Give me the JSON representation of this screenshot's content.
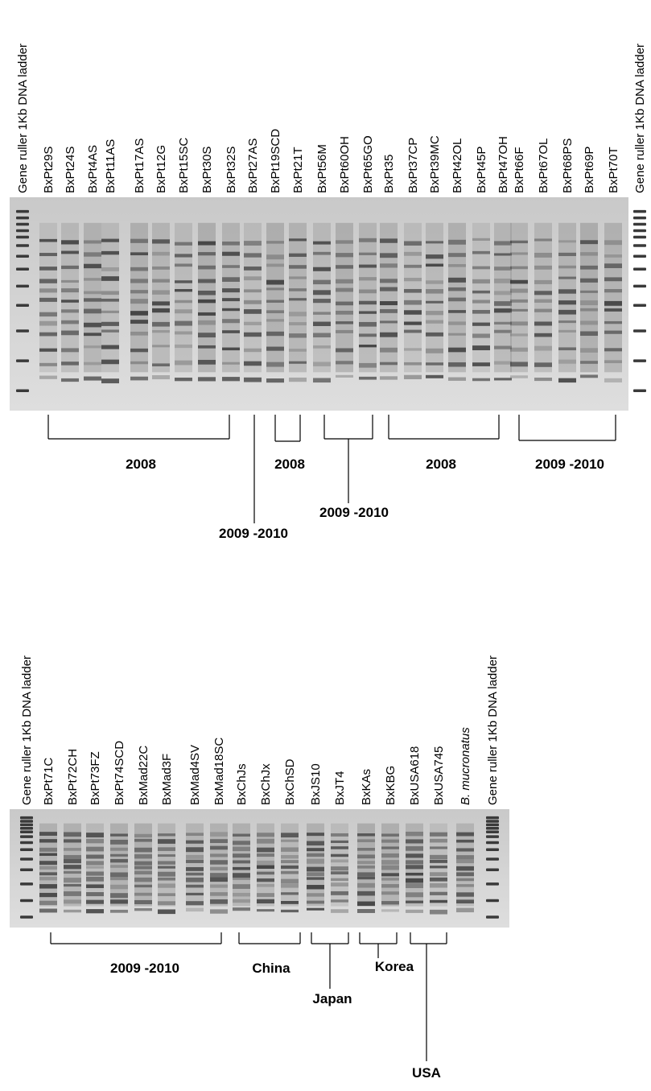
{
  "top_panel": {
    "lanes": [
      "Gene ruller 1Kb DNA ladder",
      "BxPt29S",
      "BxPt24S",
      "BxPt4AS",
      "BxPt11AS",
      "BxPt17AS",
      "BxPt12G",
      "BxPt15SC",
      "BxPt30S",
      "BxPt32S",
      "BxPt27AS",
      "BxPt19SCD",
      "BxPt21T",
      "BxPt56M",
      "BxPt60OH",
      "BxPt65GO",
      "BxPt35",
      "BxPt37CP",
      "BxPt39MC",
      "BxPt42OL",
      "BxPt45P",
      "BxPt47OH",
      "BxPt66F",
      "BxPt67OL",
      "BxPt68PS",
      "BxPt69P",
      "BxPt70T",
      "Gene ruller 1Kb DNA ladder"
    ],
    "groups": [
      "2008",
      "2009 -2010",
      "2008",
      "2009 -2010",
      "2008",
      "2009 -2010"
    ]
  },
  "bottom_panel": {
    "lanes": [
      "Gene ruller 1Kb DNA ladder",
      "BxPt71C",
      "BxPt72CH",
      "BxPt73FZ",
      "BxPt74SCD",
      "BxMad22C",
      "BxMad3F",
      "BxMad4SV",
      "BxMad18SC",
      "BxChJs",
      "BxChJx",
      "BxChSD",
      "BxJS10",
      "BxJT4",
      "BxKAs",
      "BxKBG",
      "BxUSA618",
      "BxUSA745",
      "B. mucronatus",
      "Gene ruller 1Kb DNA ladder"
    ],
    "groups": [
      "2009 -2010",
      "China",
      "Japan",
      "Korea",
      "USA"
    ]
  }
}
